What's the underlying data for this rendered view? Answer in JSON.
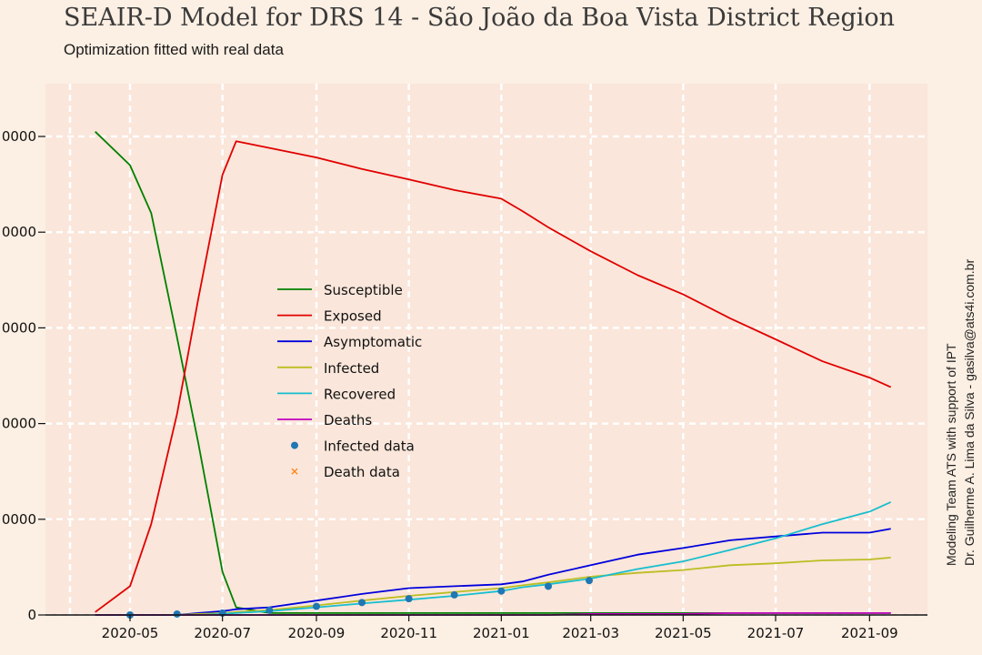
{
  "chart_data": {
    "type": "line",
    "title": "SEAIR-D Model for DRS 14 - São João da Boa Vista District Region",
    "subtitle": "Optimization fitted with real data",
    "credits": [
      "Modeling Team ATS with support of IPT",
      "Dr. Guilherme A. Lima da Silva - gasilva@ats4i.com.br"
    ],
    "xlabel": "",
    "ylabel": "",
    "x_ticks": [
      "2020-05",
      "2020-07",
      "2020-09",
      "2020-11",
      "2021-01",
      "2021-03",
      "2021-05",
      "2021-07",
      "2021-09"
    ],
    "y_ticks": [
      "0000",
      "0000",
      "0000",
      "0000",
      "0000",
      "0"
    ],
    "ylim": [
      0,
      5.5
    ],
    "grid": true,
    "legend_position": "center-left",
    "x": [
      "2020-04-08",
      "2020-05-01",
      "2020-05-15",
      "2020-06-01",
      "2020-06-15",
      "2020-07-01",
      "2020-07-10",
      "2020-08-01",
      "2020-09-01",
      "2020-10-01",
      "2020-11-01",
      "2020-12-01",
      "2021-01-01",
      "2021-01-15",
      "2021-02-01",
      "2021-03-01",
      "2021-04-01",
      "2021-05-01",
      "2021-06-01",
      "2021-07-01",
      "2021-08-01",
      "2021-09-01",
      "2021-09-15"
    ],
    "series": [
      {
        "name": "Susceptible",
        "color": "#008000",
        "values": [
          5.05,
          4.7,
          4.2,
          2.9,
          1.8,
          0.45,
          0.08,
          0.02,
          0.02,
          0.02,
          0.02,
          0.02,
          0.02,
          0.02,
          0.02,
          0.02,
          0.02,
          0.02,
          0.02,
          0.02,
          0.02,
          0.02,
          0.02
        ]
      },
      {
        "name": "Exposed",
        "color": "#e00000",
        "values": [
          0.03,
          0.3,
          0.95,
          2.1,
          3.3,
          4.6,
          4.95,
          4.88,
          4.78,
          4.66,
          4.55,
          4.44,
          4.35,
          4.22,
          4.05,
          3.8,
          3.55,
          3.35,
          3.1,
          2.88,
          2.65,
          2.48,
          2.38
        ]
      },
      {
        "name": "Asymptomatic",
        "color": "#0000dd",
        "values": [
          0,
          0,
          0,
          0,
          0.02,
          0.04,
          0.06,
          0.08,
          0.15,
          0.22,
          0.28,
          0.3,
          0.32,
          0.35,
          0.42,
          0.52,
          0.63,
          0.7,
          0.78,
          0.82,
          0.86,
          0.86,
          0.9
        ]
      },
      {
        "name": "Infected",
        "color": "#bcbd22",
        "values": [
          0,
          0,
          0,
          0,
          0.01,
          0.02,
          0.03,
          0.05,
          0.1,
          0.15,
          0.2,
          0.24,
          0.28,
          0.31,
          0.34,
          0.4,
          0.44,
          0.47,
          0.52,
          0.54,
          0.57,
          0.58,
          0.6
        ]
      },
      {
        "name": "Recovered",
        "color": "#17becf",
        "values": [
          0,
          0,
          0,
          0,
          0,
          0.01,
          0.02,
          0.04,
          0.08,
          0.12,
          0.16,
          0.2,
          0.25,
          0.29,
          0.32,
          0.38,
          0.48,
          0.56,
          0.68,
          0.8,
          0.95,
          1.08,
          1.18
        ]
      },
      {
        "name": "Deaths",
        "color": "#c000c0",
        "values": [
          0,
          0,
          0,
          0,
          0,
          0,
          0,
          0,
          0,
          0,
          0,
          0,
          0,
          0,
          0,
          0.01,
          0.01,
          0.01,
          0.02,
          0.02,
          0.02,
          0.02,
          0.02
        ]
      }
    ],
    "scatter_series": [
      {
        "name": "Infected data",
        "color": "#1f77b4",
        "marker": "circle",
        "x": [
          "2020-05-01",
          "2020-06-01",
          "2020-07-01",
          "2020-08-01",
          "2020-09-01",
          "2020-10-01",
          "2020-11-01",
          "2020-12-01",
          "2021-01-01",
          "2021-02-01",
          "2021-02-28"
        ],
        "values": [
          0.0,
          0.01,
          0.02,
          0.05,
          0.09,
          0.13,
          0.17,
          0.21,
          0.25,
          0.3,
          0.36
        ]
      },
      {
        "name": "Death data",
        "color": "#ff7f0e",
        "marker": "x",
        "x": [],
        "values": []
      }
    ]
  }
}
